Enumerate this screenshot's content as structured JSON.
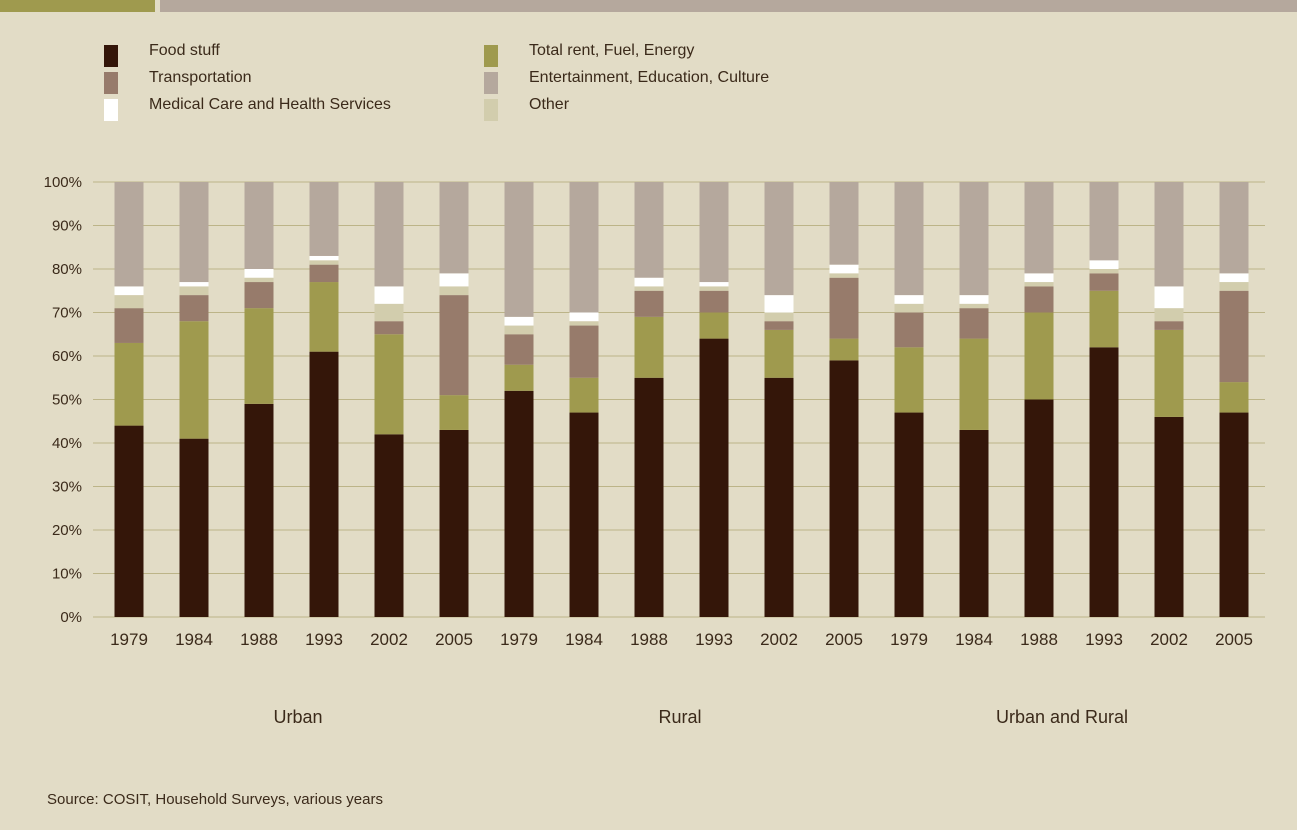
{
  "legend": {
    "items": [
      {
        "label": "Food stuff",
        "color": "#341609"
      },
      {
        "label": "Transportation",
        "color": "#977b6b"
      },
      {
        "label": "Medical Care and Health Services",
        "color": "#ffffff"
      },
      {
        "label": "Total rent, Fuel, Energy",
        "color": "#9f9a4e"
      },
      {
        "label": "Entertainment, Education, Culture",
        "color": "#b5a89d"
      },
      {
        "label": "Other",
        "color": "#d2cdad"
      }
    ]
  },
  "source": "Source: COSIT, Household Surveys, various years",
  "chart_data": {
    "type": "bar",
    "stacked": true,
    "groups": [
      "Urban",
      "Rural",
      "Urban and Rural"
    ],
    "categories": [
      "1979",
      "1984",
      "1988",
      "1993",
      "2002",
      "2005",
      "1979",
      "1984",
      "1988",
      "1993",
      "2002",
      "2005",
      "1979",
      "1984",
      "1988",
      "1993",
      "2002",
      "2005"
    ],
    "yticks": [
      "0%",
      "10%",
      "20%",
      "30%",
      "40%",
      "50%",
      "60%",
      "70%",
      "80%",
      "90%",
      "100%"
    ],
    "ylim": [
      0,
      100
    ],
    "grid": true,
    "series": [
      {
        "name": "Food stuff",
        "color": "#341609",
        "values": [
          44,
          41,
          49,
          61,
          42,
          43,
          52,
          47,
          55,
          64,
          55,
          59,
          47,
          43,
          50,
          62,
          46,
          47
        ]
      },
      {
        "name": "Total rent, Fuel, Energy",
        "color": "#9f9a4e",
        "values": [
          19,
          27,
          22,
          16,
          23,
          8,
          6,
          8,
          14,
          6,
          11,
          5,
          15,
          21,
          20,
          13,
          20,
          7
        ]
      },
      {
        "name": "Transportation",
        "color": "#977b6b",
        "values": [
          8,
          6,
          6,
          4,
          3,
          23,
          7,
          12,
          6,
          5,
          2,
          14,
          8,
          7,
          6,
          4,
          2,
          21
        ]
      },
      {
        "name": "Other",
        "color": "#d2cdad",
        "values": [
          3,
          2,
          1,
          1,
          4,
          2,
          2,
          1,
          1,
          1,
          2,
          1,
          2,
          1,
          1,
          1,
          3,
          2
        ]
      },
      {
        "name": "Medical Care and Health Services",
        "color": "#ffffff",
        "values": [
          2,
          1,
          2,
          1,
          4,
          3,
          2,
          2,
          2,
          1,
          4,
          2,
          2,
          2,
          2,
          2,
          5,
          2
        ]
      },
      {
        "name": "Entertainment, Education, Culture",
        "color": "#b5a89d",
        "values": [
          24,
          23,
          20,
          17,
          24,
          21,
          31,
          30,
          22,
          23,
          26,
          19,
          26,
          26,
          21,
          18,
          24,
          21
        ]
      }
    ]
  }
}
